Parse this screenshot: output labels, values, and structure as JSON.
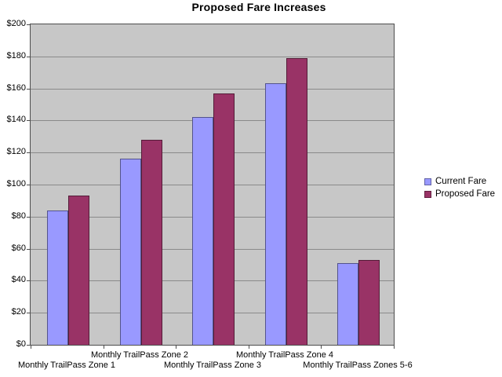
{
  "title": "Proposed Fare Increases",
  "chart_data": {
    "type": "bar",
    "title": "Proposed Fare Increases",
    "categories": [
      "Monthly TrailPass Zone 1",
      "Monthly TrailPass Zone 2",
      "Monthly TrailPass Zone 3",
      "Monthly TrailPass Zone 4",
      "Monthly TrailPass Zones 5-6"
    ],
    "series": [
      {
        "name": "Current Fare",
        "color": "#9999FF",
        "values": [
          84,
          116,
          142,
          163,
          51
        ]
      },
      {
        "name": "Proposed Fare",
        "color": "#993366",
        "values": [
          93,
          128,
          157,
          179,
          53
        ]
      }
    ],
    "xlabel": "",
    "ylabel": "",
    "ylim": [
      0,
      200
    ],
    "ytick_step": 20,
    "ytick_labels": [
      "$0",
      "$20",
      "$40",
      "$60",
      "$80",
      "$100",
      "$120",
      "$140",
      "$160",
      "$180",
      "$200"
    ],
    "grid": true,
    "x_labels_staggered": true,
    "legend_position": "right",
    "legend_items": [
      {
        "label": "Current Fare",
        "color": "#9999FF"
      },
      {
        "label": "Proposed Fare",
        "color": "#993366"
      }
    ],
    "colors": {
      "plot_bg": "#C7C7C7",
      "gridline": "#8a8a8a",
      "axis": "#4d4d4d",
      "text": "#000000",
      "page_bg": "#FFFFFF"
    }
  }
}
